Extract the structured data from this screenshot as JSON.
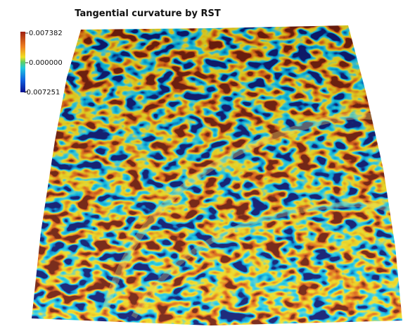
{
  "title": "Tangential curvature by RST",
  "legend": {
    "labels": [
      "0.007382",
      "0.000000",
      "-0.007251"
    ]
  }
}
